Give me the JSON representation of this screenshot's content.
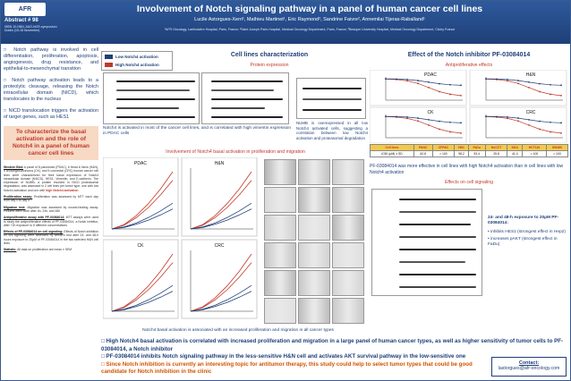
{
  "header": {
    "logo": "AFR Oncology",
    "abstract_no": "Abstract # 98",
    "abstract_sub": "ISBN 10-NNN, AAO-NCR-symposium Dublin (15-18 November)",
    "title": "Involvement of Notch signaling pathway in a panel of human cancer cell lines",
    "authors": "Lucile Astorgues-Xerri¹, Mathieu Martinet¹, Eric Raymond², Sandrine Faivre², Annemilai Tijeras-Raballand¹",
    "affiliations": "¹AFR Oncology, Lariboisière Hospital, Paris, France; ²Saint Joseph Paris Hospital, Medical Oncology Department, Paris, France; ³Beaujon University Hospital, Medical Oncology Department, Clichy France"
  },
  "left": {
    "intro": [
      "Notch pathway is involved in cell differentiation, proliferation, apoptosis, angiogenesis, drug resistance, and epithelial-to-mesenchymal transition",
      "Notch pathway activation leads to a proteolytic cleavage, releasing the Notch intracellular domain (NICD), which translocates to the nucleus",
      "NICD translocation triggers the activation of target genes, such as HES1"
    ],
    "objective": "To characterize the basal activation and the role of Notch4 in a panel of human cancer cell lines",
    "methods": [
      {
        "head": "Western Blot:",
        "text": "A panel of 8 pancreatic (PDAC), 6 Head & Neck (H&N), 5 cholangiocarcinoma (CK), and 5 colorectal (CRC) human cancer cell lines were characterized for their basal expression of Notch4 intracellular domain (N4ICD), HES1, Vimentin, and E-cadherin. The expression of NUMB, a protein involved in NICD proteasomal degradation, was assessed in 2 cell lines per tumor type, one with low Notch4 activation and one with ",
        "hl": "high Notch4 activation"
      },
      {
        "head": "Proliferation assay:",
        "text": "Proliferation was assessed by MTT each day from day 0 to day 5",
        "hl": ""
      },
      {
        "head": "Migration test:",
        "text": "Migration was assessed by wound-healing assay. Pictures were done after 4h, 24h, and 48h",
        "hl": ""
      },
      {
        "head": "Antiproliferative assay with PF-03084014:",
        "text": "MTT assays were used to study the antiproliferative effects of PF-03084014, a Notch inhibitor, after 72h exposure to 8 different concentrations",
        "hl": ""
      },
      {
        "head": "Effects of PF-03084014 on cell signaling:",
        "text": "Effects of Notch inhibition on cell signaling were assessed by western blot after 24- and 48-h hours exposure to 20µM of PF-03084014 in the two selected H&N cell lines",
        "hl": ""
      },
      {
        "head": "Statistic:",
        "text": "All data on proliferation are mean ± SEM",
        "hl": ""
      }
    ]
  },
  "legend": {
    "low": "Low Notch4 activation",
    "high": "High Notch4 activation",
    "low_color": "#1f3f78",
    "high_color": "#c0392b"
  },
  "cells": {
    "title": "Cell lines characterization",
    "subtitle": "Protein expression",
    "caption1": "Notch4 is activated in most of the cancer cell lines, and is correlated with high vimentin expression in PDAC cells",
    "caption2": "NUMB is overexpressed in all low Notch4 activated cells, suggesting a correlation between low Notch4 activation and proteasomal degradation"
  },
  "prolif": {
    "subtitle": "Involvement of Notch4 basal activation in proliferation and migration",
    "caption": "Notch4 basal activation is associated with an increased proliferation and migration in all cancer types",
    "panels": [
      "PDAC",
      "H&N",
      "CK",
      "CRC"
    ]
  },
  "effect": {
    "title": "Effect of the Notch inhibitor PF-03084014",
    "subtitle": "Antiproliferative effects",
    "panels": [
      "PDAC",
      "H&N",
      "CK",
      "CRC"
    ],
    "table_header": [
      "Cell lines",
      "PANC",
      "CFPAC",
      "HN1",
      "FaDu",
      "HuCCT",
      "KKU",
      "HCT116",
      "SW480"
    ],
    "table_row": [
      "IC50 (µM) ± SD",
      "62.8",
      "> 100",
      "98.2",
      "93.4",
      "25.8",
      "41.4",
      "> 100",
      "> 100"
    ],
    "ic50_caption": "PF-03084014 was more effective in cell lines with high Notch4 activation than in cell lines with low Notch4 activation",
    "signaling_title": "Effects on cell signaling",
    "signaling_intro": "24- and 48-h exposure to 20µM PF-03084014:",
    "signaling_list": [
      "inhibits HES1 (strongest effect in Hep2)",
      "increases pAKT (strongest effect in FaDu)"
    ]
  },
  "conclusions": [
    {
      "text": "High Notch4 basal activation is correlated with increased proliferation and migration in a large panel of human cancer types, as well as higher sensitivity of tumor cells to PF-03084014, a Notch inhibitor",
      "color": "blue"
    },
    {
      "text": "PF-03084014 inhibits Notch signaling pathway in the less-sensitive H&N cell and activates AKT survival pathway in the low-sensitive one",
      "color": "blue"
    },
    {
      "text": "Since Notch inhibition is currently an interesting topic for antitumor therapy, this study could help to select tumor types that could be good candidate for Notch inhibition in the clinic",
      "color": "orange"
    }
  ],
  "contact": {
    "label": "Contact:",
    "email": "lastorgues@afr-oncology.com"
  }
}
